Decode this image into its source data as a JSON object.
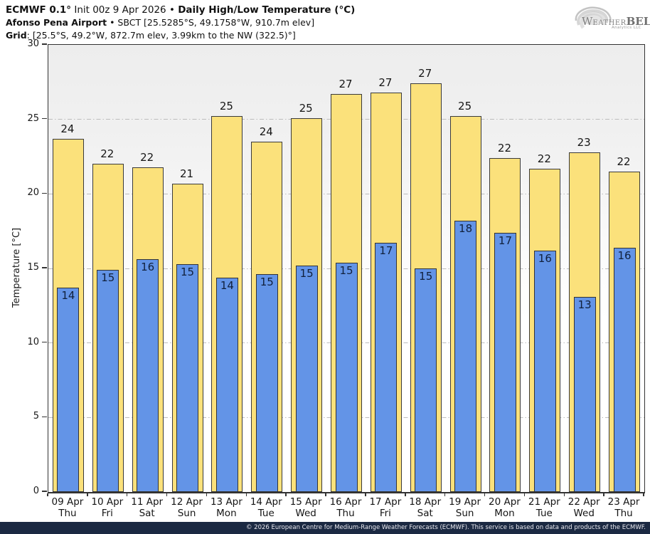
{
  "header": {
    "line1": [
      {
        "t": "ECMWF 0.1°"
      },
      {
        "t": " Init 00z 9 Apr 2026 "
      },
      {
        "t": "• "
      },
      {
        "t": "Daily High/Low Temperature (°C)"
      }
    ],
    "line2": [
      {
        "t": "Afonso Pena Airport"
      },
      {
        "t": " • SBCT [25.5285°S, 49.1758°W, 910.7m elev]"
      }
    ],
    "line3": [
      {
        "t": "Grid"
      },
      {
        "t": ": [25.5°S, 49.2°W, 872.7m elev, 3.99km to the NW (322.5)°]"
      }
    ]
  },
  "logo": {
    "word_initial": "W",
    "word_mid": "EATHER",
    "word_bold": "BELL",
    "sub": "Analytics LLC"
  },
  "chart_data": {
    "type": "bar",
    "title": "ECMWF 0.1° Init 00z 9 Apr 2026 • Daily High/Low Temperature (°C)",
    "subtitle": "Afonso Pena Airport • SBCT [25.5285°S, 49.1758°W, 910.7m elev]",
    "ylabel": "Temperature [°C]",
    "xlabel": "",
    "ylim": [
      0,
      30
    ],
    "yticks": [
      0,
      5,
      10,
      15,
      20,
      25,
      30
    ],
    "grid": "horizontal dash-dot at 5°C intervals",
    "legend_position": "none",
    "categories": [
      "09 Apr",
      "10 Apr",
      "11 Apr",
      "12 Apr",
      "13 Apr",
      "14 Apr",
      "15 Apr",
      "16 Apr",
      "17 Apr",
      "18 Apr",
      "19 Apr",
      "20 Apr",
      "21 Apr",
      "22 Apr",
      "23 Apr"
    ],
    "weekdays": [
      "Thu",
      "Fri",
      "Sat",
      "Sun",
      "Mon",
      "Tue",
      "Wed",
      "Thu",
      "Fri",
      "Sat",
      "Sun",
      "Mon",
      "Tue",
      "Wed",
      "Thu"
    ],
    "series": [
      {
        "name": "Daily High",
        "color": "#FBE17B",
        "labels": [
          24,
          22,
          22,
          21,
          25,
          24,
          25,
          27,
          27,
          27,
          25,
          22,
          22,
          23,
          22
        ],
        "values": [
          23.7,
          22.0,
          21.8,
          20.7,
          25.2,
          23.5,
          25.1,
          26.7,
          26.8,
          27.4,
          25.2,
          22.4,
          21.7,
          22.8,
          21.5
        ]
      },
      {
        "name": "Daily Low",
        "color": "#6394E7",
        "labels": [
          14,
          15,
          16,
          15,
          14,
          15,
          15,
          15,
          17,
          15,
          18,
          17,
          16,
          13,
          16
        ],
        "values": [
          13.7,
          14.9,
          15.6,
          15.3,
          14.4,
          14.6,
          15.2,
          15.4,
          16.7,
          15.0,
          18.2,
          17.4,
          16.2,
          13.1,
          16.4
        ]
      }
    ],
    "colors": {
      "high_bar": "#FBE17B",
      "low_bar": "#6394E7",
      "bar_border": "#3a3a3a",
      "gridline": "#bdbdbd",
      "plot_bg_top": "#ededed",
      "plot_bg_bottom": "#ffffff",
      "footer_bg": "#1b2942"
    }
  },
  "footer": {
    "text": "© 2026 European Centre for Medium-Range Weather Forecasts (ECMWF). This service is based on data and products of the ECMWF."
  }
}
